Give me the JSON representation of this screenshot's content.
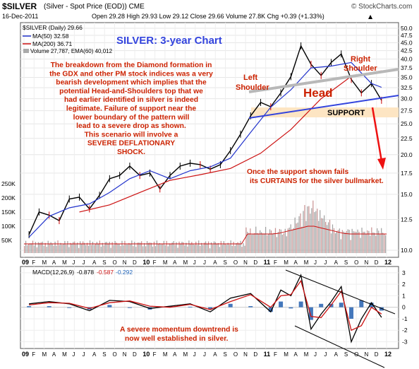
{
  "header": {
    "symbol": "$SILVER",
    "description": "(Silver - Spot Price (EOD)) CME",
    "watermark": "© StockCharts.com",
    "date": "16-Dec-2011",
    "stats": "Open 29.28  High 29.93  Low 29.12  Close 29.66  Volume 27.8K  Chg +0.39 (+1.33%)",
    "up_arrow": "▲"
  },
  "legend": {
    "price": "$SILVER (Daily) 29.66",
    "ma50": "MA(50) 32.58",
    "ma200": "MA(200) 36.71",
    "volume": "Volume 27,787, EMA(60) 40,012"
  },
  "annotations": {
    "title": "SILVER: 3-year Chart",
    "commentary": [
      "The breakdown from the Diamond formation in",
      "the GDX and other PM stock indices was a very",
      "bearish development which implies that the",
      "potential Head-and-Shoulders top that we",
      "had earlier identified in silver is indeed",
      "legitimate. Failure of support near the",
      "lower boundary of the pattern will",
      "lead to a severe drop as shown.",
      "This scenario will involve a",
      "SEVERE DEFLATIONARY",
      "SHOCK."
    ],
    "left_shoulder": [
      "Left",
      "Shoulder"
    ],
    "right_shoulder": [
      "Right",
      "Shoulder"
    ],
    "head": "Head",
    "support": "SUPPORT",
    "curtains": [
      "Once the support shown fails",
      "its CURTAINS for the silver bullmarket."
    ],
    "momentum": [
      "A severe momentum downtrend is",
      "now well established in silver."
    ]
  },
  "macd_legend": {
    "label": "MACD(12,26,9)",
    "macd": "-0.878",
    "signal": "-0.587",
    "hist": "-0.292"
  },
  "colors": {
    "price": "#000000",
    "up_candle": "#000000",
    "down_candle": "#cc0000",
    "ma50": "#2233cc",
    "ma200": "#cc1111",
    "volume_up": "#a0a0a0",
    "volume_down": "#c89090",
    "commentary": "#cc2200",
    "title": "#3344dd",
    "support_band": "#fde5c3",
    "trendline_upper": "#b8b8b8",
    "trendline_lower": "#3344dd",
    "arrow": "#ee1111",
    "macd_hist": "#4477bb"
  },
  "chart_data": [
    {
      "type": "line",
      "title": "SILVER: 3-year Chart",
      "series": [
        {
          "name": "$SILVER (Daily) 29.66",
          "x": [
            "2009-01",
            "2009-02",
            "2009-03",
            "2009-04",
            "2009-05",
            "2009-06",
            "2009-07",
            "2009-08",
            "2009-09",
            "2009-10",
            "2009-11",
            "2009-12",
            "2010-01",
            "2010-02",
            "2010-03",
            "2010-04",
            "2010-05",
            "2010-06",
            "2010-07",
            "2010-08",
            "2010-09",
            "2010-10",
            "2010-11",
            "2010-12",
            "2011-01",
            "2011-02",
            "2011-03",
            "2011-04",
            "2011-05",
            "2011-06",
            "2011-07",
            "2011-08",
            "2011-09",
            "2011-10",
            "2011-11",
            "2011-12"
          ],
          "values": [
            11.2,
            13.2,
            12.9,
            12.4,
            14.5,
            14.7,
            13.5,
            14.9,
            16.8,
            17.2,
            18.4,
            17.2,
            17.5,
            15.6,
            17.2,
            18.4,
            18.8,
            18.6,
            18.0,
            18.6,
            20.6,
            23.2,
            26.5,
            29.2,
            28.3,
            31.3,
            35.2,
            44.0,
            38.5,
            35.5,
            39.0,
            41.5,
            34.5,
            31.3,
            33.5,
            29.66
          ]
        },
        {
          "name": "MA(50) 32.58",
          "x": [
            "2009-01",
            "2009-03",
            "2009-05",
            "2009-07",
            "2009-09",
            "2009-11",
            "2010-01",
            "2010-03",
            "2010-05",
            "2010-07",
            "2010-09",
            "2010-11",
            "2011-01",
            "2011-03",
            "2011-05",
            "2011-07",
            "2011-09",
            "2011-11",
            "2011-12"
          ],
          "values": [
            11.0,
            12.8,
            13.6,
            14.0,
            15.2,
            16.8,
            17.8,
            16.8,
            17.8,
            18.3,
            19.5,
            23.5,
            28.2,
            32.0,
            37.5,
            38.0,
            39.0,
            33.5,
            32.58
          ]
        },
        {
          "name": "MA(200) 36.71",
          "x": [
            "2009-06",
            "2009-09",
            "2009-12",
            "2010-03",
            "2010-06",
            "2010-09",
            "2010-12",
            "2011-03",
            "2011-06",
            "2011-09",
            "2011-12"
          ],
          "values": [
            13.2,
            13.9,
            15.2,
            16.6,
            17.3,
            18.1,
            20.2,
            24.0,
            30.0,
            35.3,
            36.71
          ]
        }
      ],
      "ylabel_ticks": [
        10.0,
        12.5,
        15.0,
        17.5,
        20.0,
        22.5,
        25.0,
        27.5,
        30.0,
        32.5,
        35.0,
        37.5,
        40.0,
        42.5,
        45.0,
        47.5,
        50.0
      ],
      "ylim": [
        9.8,
        50.5
      ],
      "y_scale": "log",
      "volume_ticks": [
        "50K",
        "100K",
        "150K",
        "200K",
        "250K"
      ],
      "volume_peak_month": "2011-05",
      "x_tick_labels": [
        "09",
        "F",
        "M",
        "A",
        "M",
        "J",
        "J",
        "A",
        "S",
        "O",
        "N",
        "D",
        "10",
        "F",
        "M",
        "A",
        "M",
        "J",
        "J",
        "A",
        "S",
        "O",
        "N",
        "D",
        "11",
        "F",
        "M",
        "A",
        "M",
        "J",
        "J",
        "A",
        "S",
        "O",
        "N",
        "D",
        "12"
      ],
      "grid": true,
      "legend": "top-left"
    },
    {
      "type": "line",
      "title": "MACD(12,26,9) -0.878, -0.587, -0.292",
      "series": [
        {
          "name": "MACD",
          "x": [
            "2009-01",
            "2009-03",
            "2009-05",
            "2009-07",
            "2009-09",
            "2009-11",
            "2010-01",
            "2010-03",
            "2010-05",
            "2010-07",
            "2010-09",
            "2010-11",
            "2011-01",
            "2011-02",
            "2011-03",
            "2011-04",
            "2011-05",
            "2011-06",
            "2011-07",
            "2011-08",
            "2011-09",
            "2011-10",
            "2011-11",
            "2011-12"
          ],
          "values": [
            0.3,
            0.5,
            0.3,
            -0.3,
            0.6,
            0.5,
            -0.1,
            0.1,
            0.3,
            -0.4,
            0.8,
            1.2,
            -0.4,
            1.5,
            1.0,
            2.8,
            -1.9,
            -0.6,
            0.5,
            1.8,
            -3.0,
            -1.0,
            0.4,
            -0.878
          ]
        },
        {
          "name": "Signal",
          "x": [
            "2009-01",
            "2009-03",
            "2009-05",
            "2009-07",
            "2009-09",
            "2009-11",
            "2010-01",
            "2010-03",
            "2010-05",
            "2010-07",
            "2010-09",
            "2010-11",
            "2011-01",
            "2011-02",
            "2011-03",
            "2011-04",
            "2011-05",
            "2011-06",
            "2011-07",
            "2011-08",
            "2011-09",
            "2011-10",
            "2011-11",
            "2011-12"
          ],
          "values": [
            0.2,
            0.4,
            0.35,
            -0.1,
            0.4,
            0.55,
            0.1,
            0.0,
            0.25,
            -0.2,
            0.5,
            1.1,
            0.0,
            1.0,
            1.1,
            2.3,
            -0.8,
            -0.9,
            0.2,
            1.4,
            -2.0,
            -1.6,
            0.0,
            -0.587
          ]
        }
      ],
      "ylabel_ticks": [
        -3,
        -2,
        -1,
        0,
        1,
        2,
        3
      ],
      "ylim": [
        -3.4,
        3.3
      ]
    }
  ]
}
